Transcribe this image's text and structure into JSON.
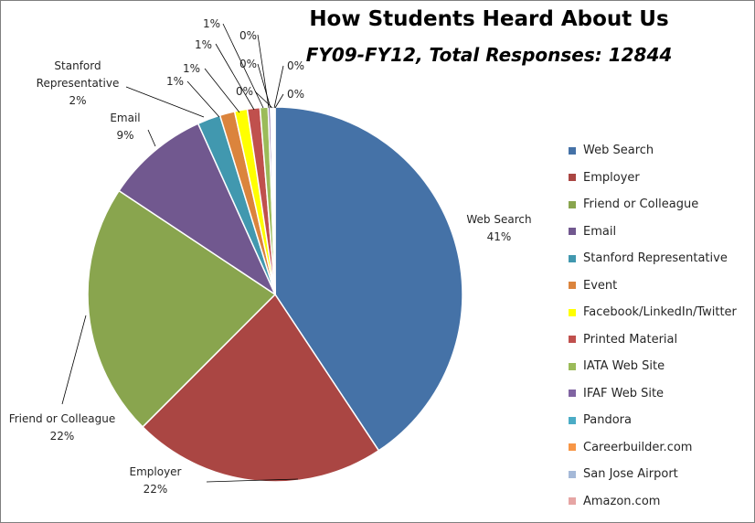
{
  "chart_data": {
    "type": "pie",
    "title": "How Students Heard About Us",
    "subtitle": "FY09-FY12, Total Responses: 12844",
    "start_angle_deg": 0,
    "direction": "clockwise",
    "slices": [
      {
        "label": "Web Search",
        "value": 41,
        "display": "41%",
        "color": "#4572A7"
      },
      {
        "label": "Employer",
        "value": 22,
        "display": "22%",
        "color": "#AA4643"
      },
      {
        "label": "Friend or Colleague",
        "value": 22,
        "display": "22%",
        "color": "#89A54E"
      },
      {
        "label": "Email",
        "value": 9,
        "display": "9%",
        "color": "#71588F"
      },
      {
        "label": "Stanford Representative",
        "value": 2,
        "display": "2%",
        "color": "#4198AF"
      },
      {
        "label": "Event",
        "value": 1.3,
        "display": "1%",
        "color": "#DB843D"
      },
      {
        "label": "Facebook/LinkedIn/Twitter",
        "value": 1.1,
        "display": "1%",
        "color": "#FFFF00"
      },
      {
        "label": "Printed Material",
        "value": 1.1,
        "display": "1%",
        "color": "#C0504D"
      },
      {
        "label": "IATA Web Site",
        "value": 0.7,
        "display": "1%",
        "color": "#9BBB59"
      },
      {
        "label": "IFAF Web Site",
        "value": 0.2,
        "display": "0%",
        "color": "#8064A2"
      },
      {
        "label": "Pandora",
        "value": 0.1,
        "display": "0%",
        "color": "#4BACC6"
      },
      {
        "label": "Careerbuilder.com",
        "value": 0.1,
        "display": "0%",
        "color": "#F79646"
      },
      {
        "label": "San Jose Airport",
        "value": 0.1,
        "display": "0%",
        "color": "#A5B9D8"
      },
      {
        "label": "Amazon.com",
        "value": 0.1,
        "display": "0%",
        "color": "#E6A5A4"
      }
    ],
    "legend_position": "right"
  }
}
